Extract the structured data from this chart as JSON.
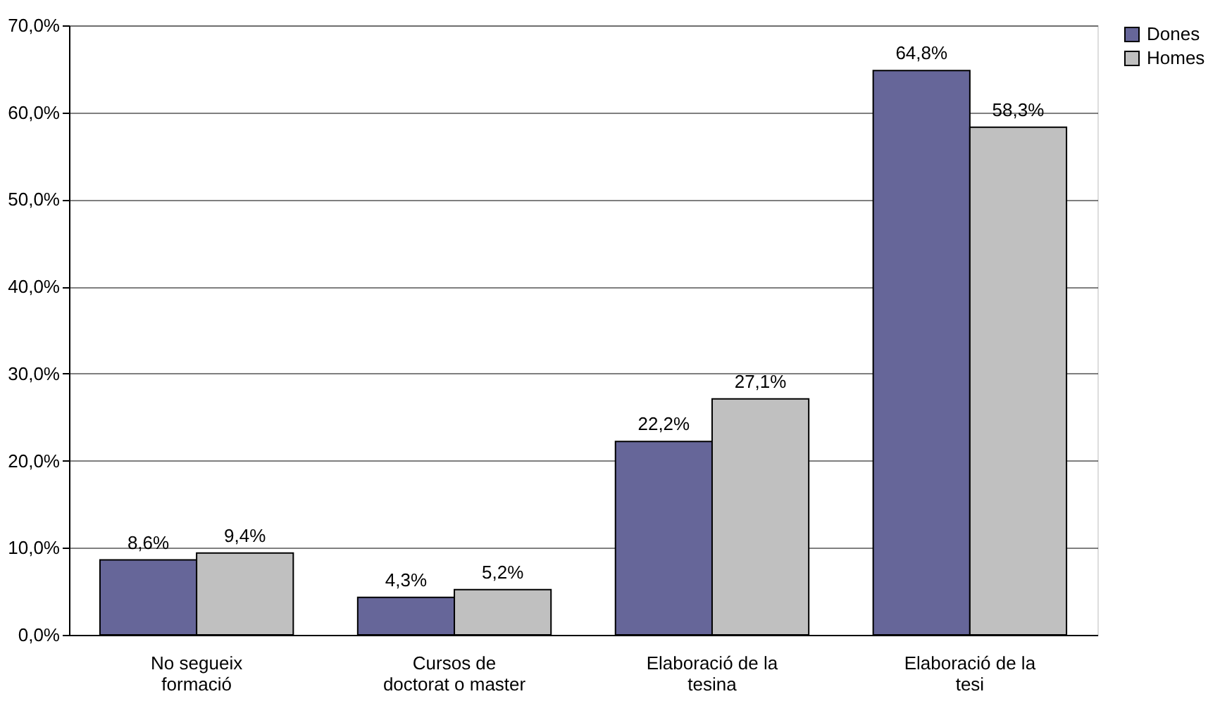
{
  "chart_data": {
    "type": "bar",
    "categories": [
      "No segueix formació",
      "Cursos de doctorat o master",
      "Elaboració de la tesina",
      "Elaboració de la tesi"
    ],
    "series": [
      {
        "name": "Dones",
        "color": "#666699",
        "values": [
          8.6,
          4.3,
          22.2,
          64.8
        ],
        "value_labels": [
          "8,6%",
          "4,3%",
          "22,2%",
          "64,8%"
        ]
      },
      {
        "name": "Homes",
        "color": "#c0c0c0",
        "values": [
          9.4,
          5.2,
          27.1,
          58.3
        ],
        "value_labels": [
          "9,4%",
          "5,2%",
          "27,1%",
          "58,3%"
        ]
      }
    ],
    "ylim": [
      0,
      70
    ],
    "yticks": [
      {
        "value": 0,
        "label": "0,0%"
      },
      {
        "value": 10,
        "label": "10,0%"
      },
      {
        "value": 20,
        "label": "20,0%"
      },
      {
        "value": 30,
        "label": "30,0%"
      },
      {
        "value": 40,
        "label": "40,0%"
      },
      {
        "value": 50,
        "label": "50,0%"
      },
      {
        "value": 60,
        "label": "60,0%"
      },
      {
        "value": 70,
        "label": "70,0%"
      }
    ],
    "grid": "y",
    "legend": "right"
  }
}
